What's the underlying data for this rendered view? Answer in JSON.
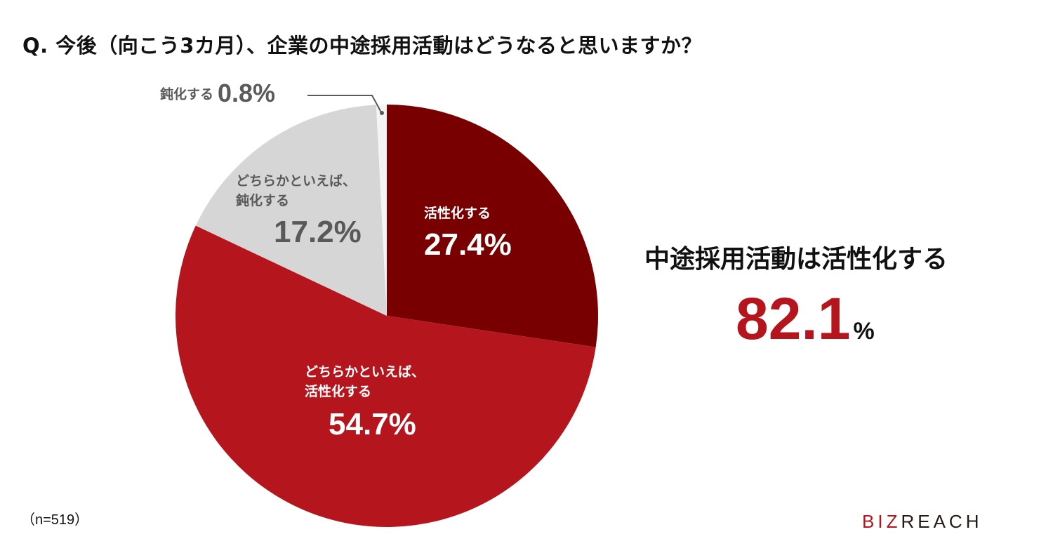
{
  "title": "Q. 今後（向こう3カ月）、企業の中途採用活動はどうなると思いますか？",
  "chart_data": {
    "type": "pie",
    "title": "Q. 今後（向こう3カ月）、企業の中途採用活動はどうなると思いますか？",
    "start_angle": "12 o'clock, clockwise",
    "slices": [
      {
        "label": "活性化する",
        "value": 27.4,
        "color": "#780000"
      },
      {
        "label": "どちらかといえば、活性化する",
        "value": 54.7,
        "color": "#b5161e"
      },
      {
        "label": "どちらかといえば、鈍化する",
        "value": 17.2,
        "color": "#d6d6d6"
      },
      {
        "label": "鈍化する",
        "value": 0.8,
        "color": "#f4f4f4"
      }
    ],
    "sample_size": "n=519",
    "summary": {
      "label": "中途採用活動は活性化する",
      "value": 82.1
    }
  },
  "labels": {
    "s1": {
      "name": "活性化する",
      "pct": "27.4%"
    },
    "s2": {
      "name1": "どちらかといえば、",
      "name2": "活性化する",
      "pct": "54.7%"
    },
    "s3": {
      "name1": "どちらかといえば、",
      "name2": "鈍化する",
      "pct": "17.2%"
    },
    "s4": {
      "name": "鈍化する",
      "pct": "0.8%"
    }
  },
  "summary": {
    "head": "中途採用活動は活性化する",
    "num": "82.1",
    "unit": "%"
  },
  "footer": {
    "sample": "（n=519）",
    "logo_red": "BIZ",
    "logo_dark": "REACH"
  }
}
